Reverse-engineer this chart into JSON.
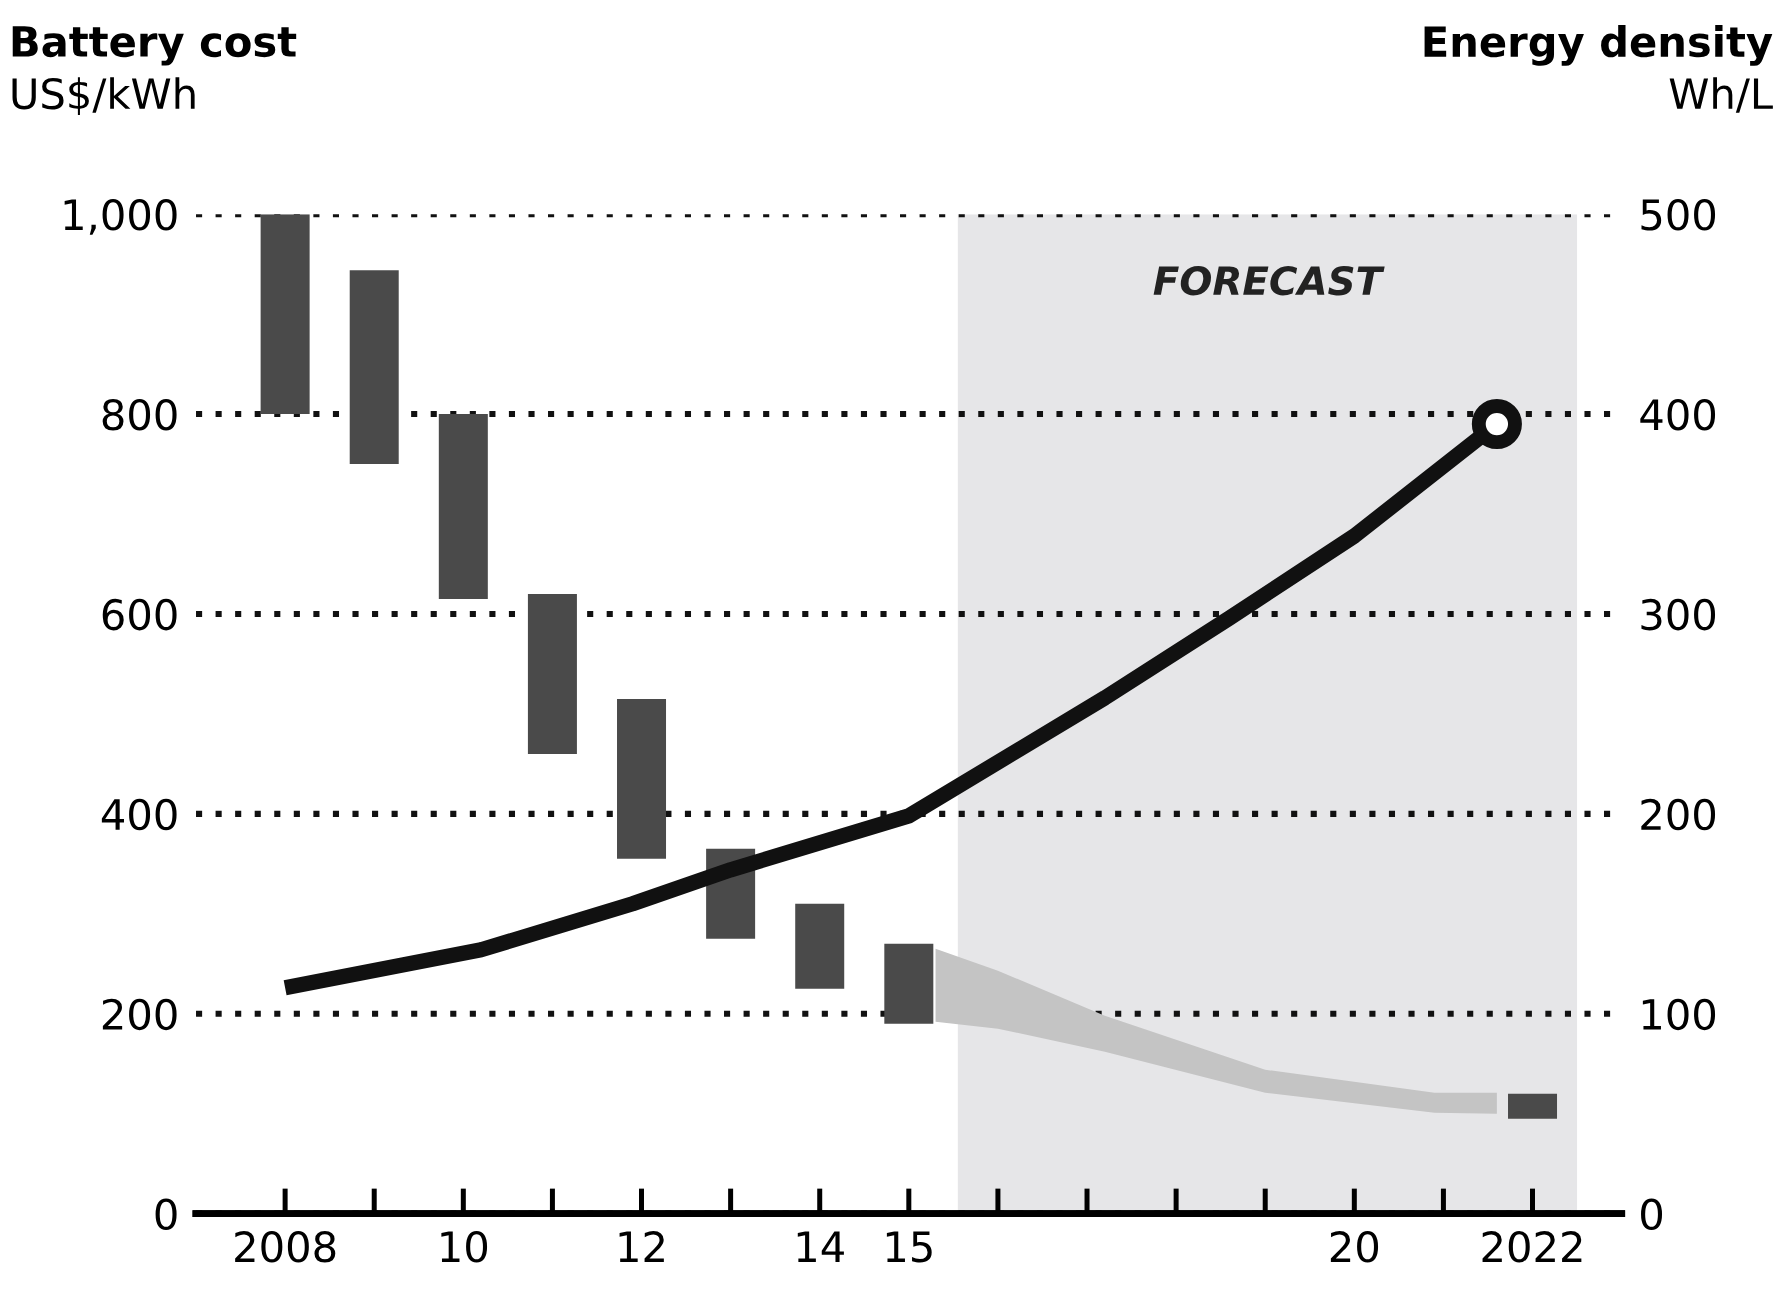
{
  "chart_data": {
    "type": "bar",
    "title": "Battery cost",
    "ylabel": "US$/kWh",
    "y2label": "Wh/L",
    "annotations": [
      "Energy density"
    ],
    "xlim": [
      2007,
      2023
    ],
    "xticks": [
      {
        "value": 2008,
        "label": "2008"
      },
      {
        "value": 2009,
        "label": null
      },
      {
        "value": 2010,
        "label": "10"
      },
      {
        "value": 2011,
        "label": null
      },
      {
        "value": 2012,
        "label": "12"
      },
      {
        "value": 2013,
        "label": null
      },
      {
        "value": 2014,
        "label": "14"
      },
      {
        "value": 2015,
        "label": "15"
      },
      {
        "value": 2016,
        "label": null
      },
      {
        "value": 2017,
        "label": null
      },
      {
        "value": 2018,
        "label": null
      },
      {
        "value": 2019,
        "label": null
      },
      {
        "value": 2020,
        "label": "20"
      },
      {
        "value": 2021,
        "label": null
      },
      {
        "value": 2022,
        "label": "2022"
      }
    ],
    "ylim": [
      0,
      1000
    ],
    "yticks": [
      0,
      200,
      400,
      600,
      800,
      {
        "value": 1000,
        "label": "1,000"
      }
    ],
    "y2lim": [
      0,
      500
    ],
    "y2ticks": [
      0,
      100,
      200,
      300,
      400,
      500
    ],
    "grid": "y",
    "bands": [
      {
        "axis": "x",
        "from": 2015.55,
        "to": 2022.5,
        "label": "FORECAST",
        "color": "#e6e6e8"
      }
    ],
    "series": [
      {
        "color": "#4a4a4a",
        "x": [
          2008,
          2009,
          2010,
          2011,
          2012,
          2013,
          2014,
          2015,
          2022
        ],
        "base": [
          800,
          750,
          615,
          460,
          355,
          275,
          225,
          190,
          95
        ],
        "values": [
          200,
          194,
          185,
          160,
          160,
          90,
          85,
          80,
          25
        ]
      },
      {
        "type": "area",
        "color": "#c4c4c4",
        "x": [
          2015.3,
          2016,
          2017.2,
          2019,
          2020.9,
          2021.6
        ],
        "values": [
          null,
          null,
          null,
          null,
          null,
          null
        ],
        "lower": [
          192,
          185,
          162,
          121,
          101,
          100
        ],
        "upper": [
          265,
          243,
          198,
          144,
          121,
          121
        ]
      },
      {
        "type": "line",
        "axis": "y2",
        "color": "#111111",
        "marker": "none",
        "line_style": "solid",
        "x": [
          2008,
          2010.2,
          2011.9,
          2013,
          2015,
          2017.2,
          2018.6,
          2020,
          2021.6
        ],
        "values": [
          113,
          132,
          155,
          172,
          199,
          258,
          298,
          339,
          395
        ]
      },
      {
        "type": "scatter",
        "axis": "y2",
        "color": "#111111",
        "marker": "circle",
        "x": [
          2021.6
        ],
        "values": [
          395
        ]
      }
    ]
  }
}
